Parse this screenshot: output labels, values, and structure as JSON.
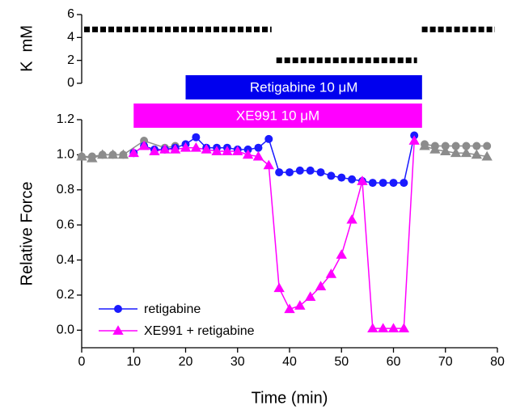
{
  "chart_data": [
    {
      "type": "step",
      "ylabel": "K  mM",
      "xlim": [
        0,
        80
      ],
      "ylim": [
        0,
        6
      ],
      "yticks": [
        0,
        2,
        4,
        6
      ],
      "segments": [
        {
          "x0": 0,
          "x1": 37,
          "value": 4.7
        },
        {
          "x0": 37,
          "x1": 65,
          "value": 2
        },
        {
          "x0": 65,
          "x1": 80,
          "value": 4.7
        }
      ],
      "color": "#000000",
      "bars": [
        {
          "label": "Retigabine 10 μM",
          "x0": 20,
          "x1": 65.5,
          "color": "#0000ee"
        },
        {
          "label": "XE991 10 μM",
          "x0": 10,
          "x1": 65.5,
          "color": "#ff00ff"
        }
      ]
    },
    {
      "type": "line",
      "xlabel": "Time (min)",
      "ylabel": "Relative Force",
      "xlim": [
        0,
        80
      ],
      "ylim": [
        -0.1,
        1.2
      ],
      "xticks": [
        0,
        10,
        20,
        30,
        40,
        50,
        60,
        70,
        80
      ],
      "yticks": [
        {
          "value": 0,
          "label": "0.0"
        },
        0.2,
        0.4,
        0.6,
        0.8,
        {
          "value": 1,
          "label": "1.0"
        },
        1.2
      ],
      "legend": "lower left",
      "series": [
        {
          "color": "#8c8c8c",
          "marker": "circle",
          "x": [
            0,
            2,
            4,
            6,
            8,
            12,
            16,
            18
          ],
          "values": [
            0.99,
            0.99,
            1.0,
            1.0,
            1.0,
            1.08,
            1.04,
            1.05
          ]
        },
        {
          "color": "#8c8c8c",
          "marker": "triangle",
          "x": [
            0,
            2,
            4,
            6,
            8
          ],
          "values": [
            0.99,
            0.98,
            1.0,
            1.0,
            1.0
          ]
        },
        {
          "color": "#8c8c8c",
          "marker": "circle",
          "x": [
            66,
            68,
            70,
            72,
            74,
            76,
            78
          ],
          "values": [
            1.06,
            1.05,
            1.05,
            1.05,
            1.05,
            1.05,
            1.05
          ]
        },
        {
          "color": "#8c8c8c",
          "marker": "triangle",
          "x": [
            66,
            68,
            70,
            72,
            74,
            76,
            78
          ],
          "values": [
            1.05,
            1.03,
            1.02,
            1.01,
            1.01,
            1.0,
            0.99
          ]
        },
        {
          "name": "retigabine",
          "color": "#1a1aff",
          "marker": "circle",
          "x": [
            10,
            12,
            14,
            16,
            18,
            20,
            22,
            24,
            26,
            28,
            30,
            32,
            34,
            36,
            38,
            40,
            42,
            44,
            46,
            48,
            50,
            52,
            54,
            56,
            58,
            60,
            62,
            64
          ],
          "values": [
            1.01,
            1.05,
            1.03,
            1.03,
            1.04,
            1.06,
            1.1,
            1.04,
            1.04,
            1.04,
            1.03,
            1.03,
            1.04,
            1.09,
            0.9,
            0.9,
            0.91,
            0.91,
            0.9,
            0.88,
            0.87,
            0.86,
            0.85,
            0.84,
            0.84,
            0.84,
            0.84,
            1.11
          ]
        },
        {
          "name": "XE991 + retigabine",
          "color": "#ff00ff",
          "marker": "triangle",
          "x": [
            10,
            12,
            14,
            16,
            18,
            20,
            22,
            24,
            26,
            28,
            30,
            32,
            34,
            36,
            38,
            40,
            42,
            44,
            46,
            48,
            50,
            52,
            54,
            56,
            58,
            60,
            62,
            64
          ],
          "values": [
            1.01,
            1.05,
            1.02,
            1.03,
            1.03,
            1.04,
            1.04,
            1.03,
            1.02,
            1.02,
            1.02,
            1.0,
            0.99,
            0.94,
            0.24,
            0.12,
            0.14,
            0.19,
            0.25,
            0.32,
            0.43,
            0.63,
            0.85,
            0.01,
            0.01,
            0.01,
            0.01,
            1.08
          ]
        }
      ]
    }
  ]
}
